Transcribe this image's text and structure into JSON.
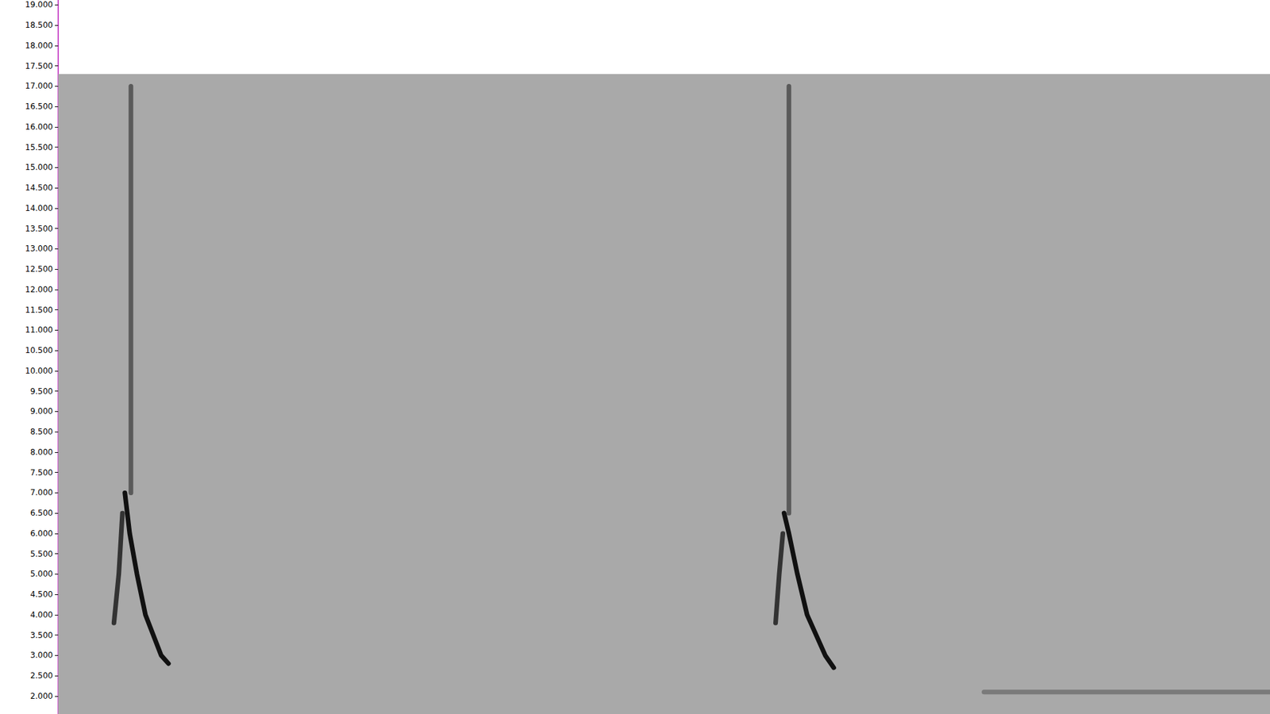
{
  "chart_data": {
    "type": "spectrogram",
    "xlim": [
      0,
      100
    ],
    "ylim": [
      1.56,
      19.12
    ],
    "yticks": [
      {
        "value": 2,
        "label": "2.000"
      },
      {
        "value": 2.5,
        "label": "2.500"
      },
      {
        "value": 3,
        "label": "3.000"
      },
      {
        "value": 3.5,
        "label": "3.500"
      },
      {
        "value": 4,
        "label": "4.000"
      },
      {
        "value": 4.5,
        "label": "4.500"
      },
      {
        "value": 5,
        "label": "5.000"
      },
      {
        "value": 5.5,
        "label": "5.500"
      },
      {
        "value": 6,
        "label": "6.000"
      },
      {
        "value": 6.5,
        "label": "6.500"
      },
      {
        "value": 7,
        "label": "7.000"
      },
      {
        "value": 7.5,
        "label": "7.500"
      },
      {
        "value": 8,
        "label": "8.000"
      },
      {
        "value": 8.5,
        "label": "8.500"
      },
      {
        "value": 9,
        "label": "9.000"
      },
      {
        "value": 9.5,
        "label": "9.500"
      },
      {
        "value": 10,
        "label": "10.000"
      },
      {
        "value": 10.5,
        "label": "10.500"
      },
      {
        "value": 11,
        "label": "11.000"
      },
      {
        "value": 11.5,
        "label": "11.500"
      },
      {
        "value": 12,
        "label": "12.000"
      },
      {
        "value": 12.5,
        "label": "12.500"
      },
      {
        "value": 13,
        "label": "13.000"
      },
      {
        "value": 13.5,
        "label": "13.500"
      },
      {
        "value": 14,
        "label": "14.000"
      },
      {
        "value": 14.5,
        "label": "14.500"
      },
      {
        "value": 15,
        "label": "15.000"
      },
      {
        "value": 15.5,
        "label": "15.500"
      },
      {
        "value": 16,
        "label": "16.000"
      },
      {
        "value": 16.5,
        "label": "16.500"
      },
      {
        "value": 17,
        "label": "17.000"
      },
      {
        "value": 17.5,
        "label": "17.500"
      },
      {
        "value": 18,
        "label": "18.000"
      },
      {
        "value": 18.5,
        "label": "18.500"
      },
      {
        "value": 19,
        "label": "19.000"
      }
    ],
    "spectrum_top": 17.3,
    "grid": false,
    "tick_labels": "y",
    "series": [
      {
        "color": "#5a5a5a",
        "x": [
          6.0,
          6.0
        ],
        "values": [
          7.0,
          17.0
        ]
      },
      {
        "color": "#111111",
        "x": [
          5.5,
          5.9,
          6.5,
          7.2,
          8.5,
          9.1
        ],
        "values": [
          7.0,
          6.0,
          5.0,
          4.0,
          3.0,
          2.8
        ]
      },
      {
        "color": "#333333",
        "x": [
          5.3,
          5.0,
          4.6
        ],
        "values": [
          6.5,
          5.0,
          3.8
        ]
      },
      {
        "color": "#5a5a5a",
        "x": [
          60.3,
          60.3
        ],
        "values": [
          6.5,
          17.0
        ]
      },
      {
        "color": "#111111",
        "x": [
          59.9,
          60.3,
          61.0,
          61.8,
          63.3,
          64.0
        ],
        "values": [
          6.5,
          6.0,
          5.0,
          4.0,
          3.0,
          2.7
        ]
      },
      {
        "color": "#333333",
        "x": [
          59.8,
          59.5,
          59.2
        ],
        "values": [
          6.0,
          5.0,
          3.8
        ]
      },
      {
        "color": "#7a7a7a",
        "x": [
          76.4,
          100
        ],
        "values": [
          2.1,
          2.1
        ]
      }
    ]
  }
}
